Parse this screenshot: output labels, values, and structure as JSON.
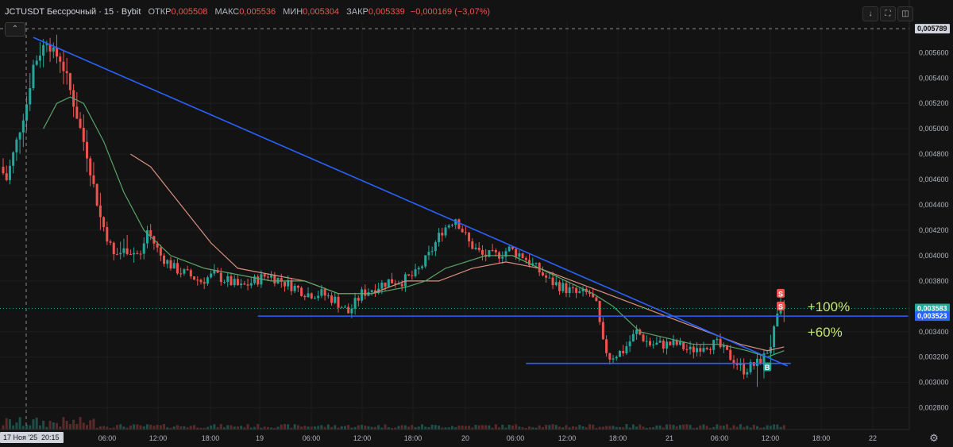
{
  "header": {
    "symbol": "JCTUSDT Бессрочный · 15 · Bybit",
    "open_label": "ОТКР",
    "open_value": "0,005508",
    "high_label": "МАКС",
    "high_value": "0,005536",
    "low_label": "МИН",
    "low_value": "0,005304",
    "close_label": "ЗАКР",
    "close_value": "0,005339",
    "change": "−0,000169 (−3,07%)"
  },
  "toolbar": {
    "collapse_icon": "chevron-up-icon",
    "down_icon": "arrow-down-icon",
    "fullscreen_icon": "fullscreen-icon",
    "snapshot_icon": "camera-icon",
    "settings_icon": "gear-icon"
  },
  "colors": {
    "bg": "#131313",
    "up": "#26a69a",
    "down": "#ef5350",
    "trendline": "#2962ff",
    "ma_fast": "#5aa468",
    "ma_slow": "#d9907f",
    "badge_blue": "#2962ff",
    "annotation": "#c5e86c"
  },
  "chart_data": {
    "type": "candlestick",
    "y_axis": {
      "range": [
        0.00276,
        0.00584
      ],
      "ticks": [
        "0,005600",
        "0,005400",
        "0,005200",
        "0,005000",
        "0,004800",
        "0,004600",
        "0,004400",
        "0,004200",
        "0,004000",
        "0,003800",
        "0,003400",
        "0,003200",
        "0,003000",
        "0,002800"
      ]
    },
    "x_axis": {
      "ticks": [
        "06:00",
        "12:00",
        "18:00",
        "19",
        "06:00",
        "12:00",
        "18:00",
        "20",
        "06:00",
        "12:00",
        "18:00",
        "21",
        "06:00",
        "12:00",
        "18:00",
        "22"
      ],
      "crosshair_date_label": "17 Ноя '25",
      "crosshair_time_label": "20:15"
    },
    "price_labels": {
      "crosshair_price": "0,005789",
      "last_price": "0,003583",
      "level_price": "0,003523"
    },
    "price_path": [
      [
        0,
        0.0047
      ],
      [
        2,
        0.0046
      ],
      [
        5,
        0.0049
      ],
      [
        8,
        0.0052
      ],
      [
        10,
        0.0055
      ],
      [
        12,
        0.0056
      ],
      [
        14,
        0.0057
      ],
      [
        16,
        0.0056
      ],
      [
        18,
        0.00555
      ],
      [
        20,
        0.0054
      ],
      [
        22,
        0.0052
      ],
      [
        26,
        0.0048
      ],
      [
        30,
        0.0043
      ],
      [
        34,
        0.004
      ],
      [
        38,
        0.00405
      ],
      [
        42,
        0.004
      ],
      [
        44,
        0.0042
      ],
      [
        48,
        0.004
      ],
      [
        52,
        0.0039
      ],
      [
        56,
        0.00385
      ],
      [
        60,
        0.0038
      ],
      [
        64,
        0.00385
      ],
      [
        68,
        0.0038
      ],
      [
        72,
        0.00375
      ],
      [
        76,
        0.0038
      ],
      [
        80,
        0.00385
      ],
      [
        84,
        0.0038
      ],
      [
        88,
        0.00375
      ],
      [
        92,
        0.0037
      ],
      [
        96,
        0.0037
      ],
      [
        100,
        0.00365
      ],
      [
        104,
        0.00355
      ],
      [
        108,
        0.0037
      ],
      [
        112,
        0.00375
      ],
      [
        116,
        0.0038
      ],
      [
        120,
        0.0038
      ],
      [
        124,
        0.00385
      ],
      [
        128,
        0.004
      ],
      [
        132,
        0.0042
      ],
      [
        136,
        0.0043
      ],
      [
        140,
        0.0041
      ],
      [
        144,
        0.004
      ],
      [
        148,
        0.004
      ],
      [
        152,
        0.00405
      ],
      [
        156,
        0.004
      ],
      [
        160,
        0.0039
      ],
      [
        164,
        0.0038
      ],
      [
        168,
        0.00375
      ],
      [
        172,
        0.0037
      ],
      [
        176,
        0.0037
      ],
      [
        178,
        0.0036
      ],
      [
        180,
        0.0033
      ],
      [
        182,
        0.0032
      ],
      [
        186,
        0.00325
      ],
      [
        190,
        0.0034
      ],
      [
        194,
        0.0033
      ],
      [
        198,
        0.0033
      ],
      [
        202,
        0.0033
      ],
      [
        206,
        0.00325
      ],
      [
        210,
        0.0033
      ],
      [
        214,
        0.0033
      ],
      [
        218,
        0.0032
      ],
      [
        222,
        0.0031
      ],
      [
        226,
        0.00315
      ],
      [
        228,
        0.0032
      ],
      [
        230,
        0.0033
      ],
      [
        232,
        0.0035
      ],
      [
        233,
        0.00358
      ]
    ],
    "ma_fast_path": [
      [
        12,
        0.005
      ],
      [
        16,
        0.0052
      ],
      [
        20,
        0.00525
      ],
      [
        24,
        0.0052
      ],
      [
        30,
        0.0049
      ],
      [
        36,
        0.0045
      ],
      [
        42,
        0.0042
      ],
      [
        50,
        0.004
      ],
      [
        60,
        0.0039
      ],
      [
        70,
        0.00385
      ],
      [
        80,
        0.0038
      ],
      [
        90,
        0.0038
      ],
      [
        100,
        0.0037
      ],
      [
        110,
        0.0037
      ],
      [
        120,
        0.00375
      ],
      [
        126,
        0.0038
      ],
      [
        132,
        0.0039
      ],
      [
        138,
        0.00395
      ],
      [
        144,
        0.004
      ],
      [
        152,
        0.004
      ],
      [
        160,
        0.0039
      ],
      [
        168,
        0.0038
      ],
      [
        176,
        0.0037
      ],
      [
        182,
        0.0036
      ],
      [
        190,
        0.0034
      ],
      [
        198,
        0.00335
      ],
      [
        206,
        0.0033
      ],
      [
        214,
        0.0033
      ],
      [
        222,
        0.00325
      ],
      [
        228,
        0.0032
      ],
      [
        233,
        0.00325
      ]
    ],
    "ma_slow_path": [
      [
        38,
        0.0048
      ],
      [
        44,
        0.0047
      ],
      [
        50,
        0.0045
      ],
      [
        56,
        0.0043
      ],
      [
        62,
        0.0041
      ],
      [
        70,
        0.0039
      ],
      [
        80,
        0.00385
      ],
      [
        90,
        0.0038
      ],
      [
        100,
        0.0037
      ],
      [
        110,
        0.0037
      ],
      [
        120,
        0.0038
      ],
      [
        130,
        0.0038
      ],
      [
        140,
        0.0039
      ],
      [
        150,
        0.00395
      ],
      [
        160,
        0.0039
      ],
      [
        170,
        0.0038
      ],
      [
        180,
        0.0037
      ],
      [
        190,
        0.0036
      ],
      [
        200,
        0.0035
      ],
      [
        210,
        0.0034
      ],
      [
        220,
        0.0033
      ],
      [
        228,
        0.00325
      ],
      [
        233,
        0.00328
      ]
    ],
    "trendlines": [
      {
        "from": [
          9,
          0.00572
        ],
        "to": [
          234,
          0.00313
        ]
      },
      {
        "from": [
          76,
          0.003523
        ],
        "to": [
          270,
          0.003523
        ]
      },
      {
        "from": [
          156,
          0.00315
        ],
        "to": [
          235,
          0.00315
        ]
      }
    ],
    "markers": [
      {
        "x": 232,
        "y": 0.0037,
        "text": "S",
        "color": "#ef5350"
      },
      {
        "x": 232,
        "y": 0.0036,
        "text": "S",
        "color": "#ef5350"
      },
      {
        "x": 228,
        "y": 0.00312,
        "text": "B",
        "color": "#26a69a"
      }
    ],
    "annotations": [
      {
        "text": "+100%",
        "x": 240,
        "y": 0.0036
      },
      {
        "text": "+60%",
        "x": 240,
        "y": 0.0034
      }
    ]
  }
}
